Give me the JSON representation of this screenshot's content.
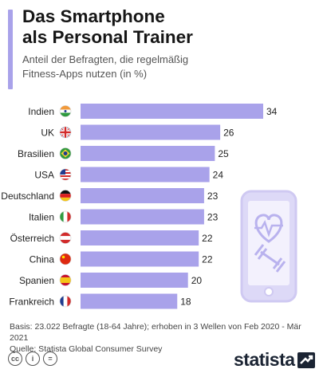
{
  "header": {
    "title_line1": "Das Smartphone",
    "title_line2": "als Personal Trainer",
    "subtitle_line1": "Anteil der Befragten, die regelmäßig",
    "subtitle_line2": "Fitness-Apps nutzen (in %)"
  },
  "chart_data": {
    "type": "bar",
    "orientation": "horizontal",
    "categories": [
      "Indien",
      "UK",
      "Brasilien",
      "USA",
      "Deutschland",
      "Italien",
      "Österreich",
      "China",
      "Spanien",
      "Frankreich"
    ],
    "values": [
      34,
      26,
      25,
      24,
      23,
      23,
      22,
      22,
      20,
      18
    ],
    "flag_icons": [
      "flag-india-icon",
      "flag-uk-icon",
      "flag-brazil-icon",
      "flag-usa-icon",
      "flag-germany-icon",
      "flag-italy-icon",
      "flag-austria-icon",
      "flag-china-icon",
      "flag-spain-icon",
      "flag-france-icon"
    ],
    "bar_color": "#a9a2ea",
    "title": "Das Smartphone als Personal Trainer",
    "subtitle": "Anteil der Befragten, die regelmäßig Fitness-Apps nutzen (in %)",
    "xlabel": "",
    "ylabel": "",
    "xlim": [
      0,
      34
    ],
    "grid": false,
    "value_labels": true
  },
  "footer": {
    "basis": "Basis: 23.022 Befragte (18-64 Jahre); erhoben in 3 Wellen von Feb 2020 - Mär 2021",
    "source": "Quelle: Statista Global Consumer Survey",
    "brand": "statista"
  },
  "colors": {
    "accent": "#a9a2ea",
    "illustration": "#ddd9f7",
    "brand": "#1b2433"
  }
}
